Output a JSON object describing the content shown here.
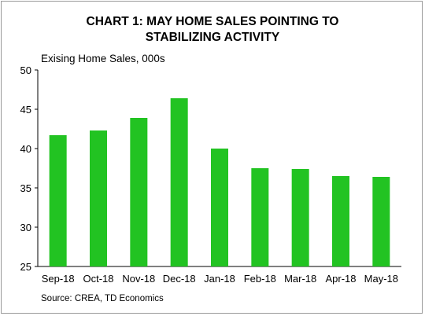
{
  "chart_data": {
    "type": "bar",
    "title_line1": "CHART 1: MAY HOME SALES POINTING TO",
    "title_line2": "STABILIZING ACTIVITY",
    "ylabel": "Exising Home Sales, 000s",
    "xlabel": "",
    "source": "Source: CREA, TD Economics",
    "categories": [
      "Sep-18",
      "Oct-18",
      "Nov-18",
      "Dec-18",
      "Jan-18",
      "Feb-18",
      "Mar-18",
      "Apr-18",
      "May-18"
    ],
    "values": [
      41.7,
      42.3,
      43.9,
      46.4,
      40.0,
      37.5,
      37.4,
      36.5,
      36.4
    ],
    "ylim": [
      25,
      50
    ],
    "yticks": [
      25,
      30,
      35,
      40,
      45,
      50
    ],
    "grid": false,
    "bar_color": "#22c322"
  }
}
